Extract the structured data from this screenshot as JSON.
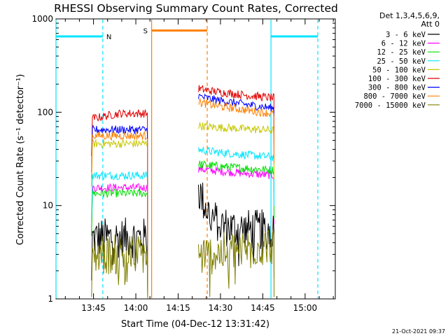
{
  "chart_data": {
    "type": "line",
    "title": "RHESSI Observing Summary Count Rates, Corrected",
    "xlabel": "Start Time (04-Dec-12 13:31:42)",
    "ylabel": "Corrected Count Rate (s⁻¹ detector⁻¹)",
    "yscale": "log",
    "xlim_minutes": [
      0,
      99
    ],
    "ylim": [
      1,
      1000
    ],
    "x_ticks": [
      "13:45",
      "14:00",
      "14:15",
      "14:30",
      "14:45",
      "15:00"
    ],
    "y_ticks": [
      "1",
      "10",
      "100",
      "1000"
    ],
    "legend_header": [
      "Det 1,3,4,5,6,9,",
      "Att 0"
    ],
    "legend_placement": "right",
    "footer": "21-Oct-2021 09:37",
    "night_label": "N",
    "saa_label": "S",
    "segments_minutes": [
      [
        12.6,
        32.5
      ],
      [
        50.5,
        77.3
      ]
    ],
    "series": [
      {
        "name": "3 - 6 keV",
        "color": "#000000",
        "seg1": 4.5,
        "seg2": 5.5,
        "seg2_start": 15.0
      },
      {
        "name": "6 - 12 keV",
        "color": "#ff00ff",
        "seg1": 15.5,
        "seg2": 21.0,
        "seg2_start": 25.0
      },
      {
        "name": "12 - 25 keV",
        "color": "#00e000",
        "seg1": 13.5,
        "seg2": 24.0,
        "seg2_start": 28.0
      },
      {
        "name": "25 - 50 keV",
        "color": "#00e5ff",
        "seg1": 21.0,
        "seg2": 33.0,
        "seg2_start": 40.0
      },
      {
        "name": "50 - 100 keV",
        "color": "#c8c800",
        "seg1": 46.0,
        "seg2": 64.0,
        "seg2_start": 72.0
      },
      {
        "name": "100 - 300 keV",
        "color": "#e00000",
        "seg1": 97.0,
        "seg2": 142.0,
        "seg2_start": 180.0
      },
      {
        "name": "300 - 800 keV",
        "color": "#0000ff",
        "seg1": 65.0,
        "seg2": 110.0,
        "seg2_start": 150.0
      },
      {
        "name": "800 - 7000 keV",
        "color": "#ff8000",
        "seg1": 56.0,
        "seg2": 96.0,
        "seg2_start": 130.0
      },
      {
        "name": "7000 - 15000 keV",
        "color": "#808000",
        "seg1": 3.0,
        "seg2": 3.5,
        "seg2_start": 2.5
      }
    ],
    "markers_minutes": [
      {
        "type": "night-start",
        "x": 0.0,
        "color": "#00e5ff",
        "style": "solid"
      },
      {
        "type": "night-end",
        "x": 16.6,
        "color": "#00e5ff",
        "style": "dashed"
      },
      {
        "type": "saa-start",
        "x": 33.9,
        "color": "#ff8000",
        "style": "solid"
      },
      {
        "type": "saa-end",
        "x": 53.6,
        "color": "#ff8000",
        "style": "dashed"
      },
      {
        "type": "night-start",
        "x": 76.2,
        "color": "#00e5ff",
        "style": "solid"
      },
      {
        "type": "night-end",
        "x": 92.8,
        "color": "#00e5ff",
        "style": "dashed"
      }
    ],
    "bars_minutes": [
      {
        "x0": 0.0,
        "x1": 16.6,
        "value": 650,
        "color": "#00e5ff"
      },
      {
        "x0": 33.9,
        "x1": 53.6,
        "value": 750,
        "color": "#ff8000"
      },
      {
        "x0": 76.2,
        "x1": 92.8,
        "value": 650,
        "color": "#00e5ff"
      }
    ]
  }
}
